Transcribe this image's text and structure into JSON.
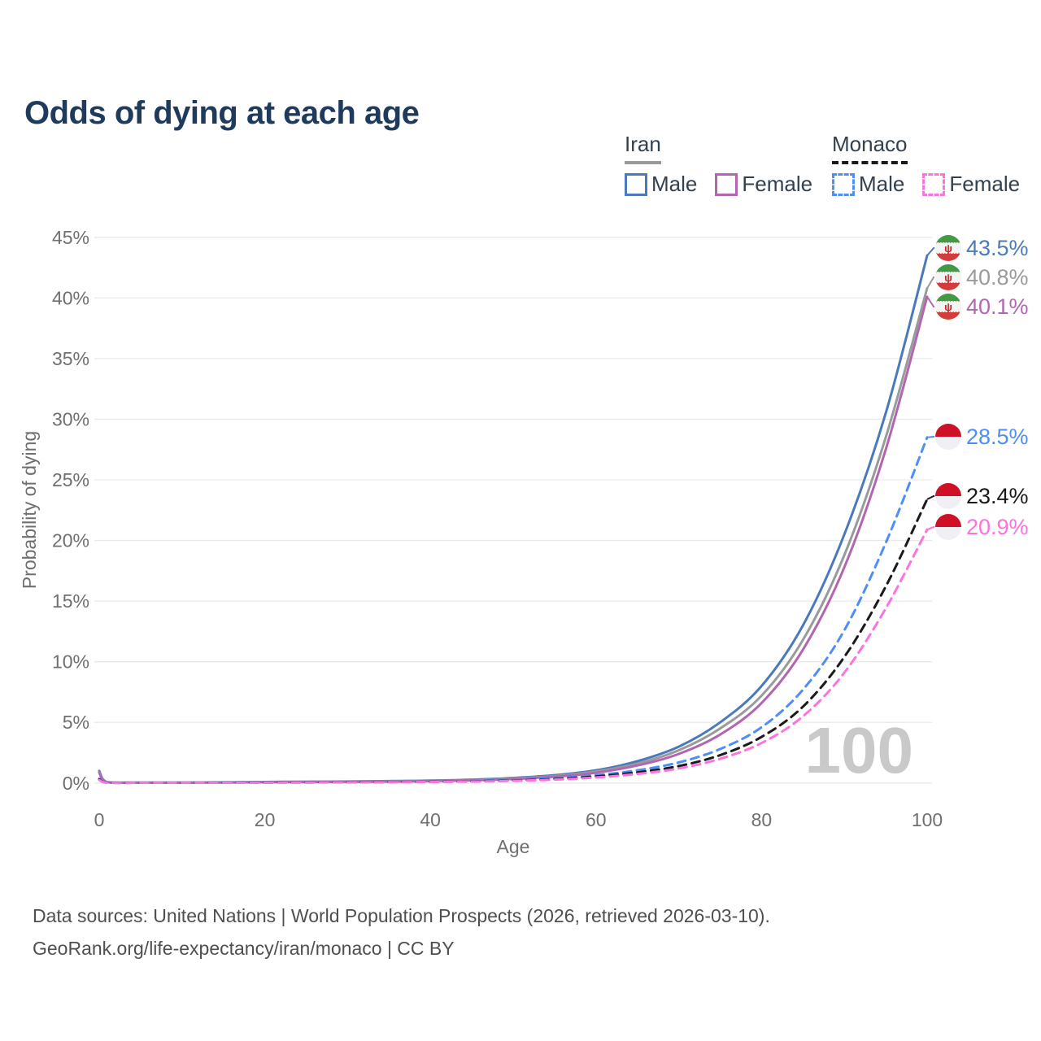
{
  "title": "Odds of dying at each age",
  "legend": {
    "groups": [
      {
        "name": "Iran",
        "line_style": "solid",
        "line_color": "#9a9a9a",
        "items": [
          {
            "label": "Male",
            "color": "#4a7abc"
          },
          {
            "label": "Female",
            "color": "#b266b2"
          }
        ]
      },
      {
        "name": "Monaco",
        "line_style": "dashed",
        "line_color": "#1a1a1a",
        "items": [
          {
            "label": "Male",
            "color": "#4e8ef5"
          },
          {
            "label": "Female",
            "color": "#fb73de"
          }
        ]
      }
    ]
  },
  "chart_data": {
    "type": "line",
    "title": "Odds of dying at each age",
    "xlabel": "Age",
    "ylabel": "Probability of dying",
    "xlim": [
      0,
      100
    ],
    "ylim": [
      0,
      45
    ],
    "xticks": [
      0,
      20,
      40,
      60,
      80,
      100
    ],
    "yticks": [
      0,
      5,
      10,
      15,
      20,
      25,
      30,
      35,
      40,
      45
    ],
    "ytick_suffix": "%",
    "grid": "horizontal",
    "watermark": "100",
    "series": [
      {
        "name": "Iran Male",
        "country": "Iran",
        "sex": "male",
        "color": "#4a7abc",
        "dash": false,
        "flag": "iran",
        "end_label": "43.5%",
        "end_value": 43.5,
        "points": [
          [
            0,
            1.0
          ],
          [
            1,
            0.07
          ],
          [
            5,
            0.04
          ],
          [
            10,
            0.04
          ],
          [
            15,
            0.06
          ],
          [
            20,
            0.09
          ],
          [
            25,
            0.11
          ],
          [
            30,
            0.13
          ],
          [
            35,
            0.16
          ],
          [
            40,
            0.2
          ],
          [
            45,
            0.28
          ],
          [
            50,
            0.42
          ],
          [
            55,
            0.65
          ],
          [
            60,
            1.05
          ],
          [
            65,
            1.8
          ],
          [
            70,
            3.0
          ],
          [
            75,
            5.0
          ],
          [
            80,
            8.0
          ],
          [
            85,
            13.0
          ],
          [
            90,
            20.5
          ],
          [
            95,
            30.5
          ],
          [
            100,
            43.5
          ]
        ]
      },
      {
        "name": "Iran",
        "country": "Iran",
        "sex": "both",
        "color": "#9a9a9a",
        "dash": false,
        "flag": "iran",
        "end_label": "40.8%",
        "end_value": 40.8,
        "points": [
          [
            0,
            0.9
          ],
          [
            1,
            0.06
          ],
          [
            5,
            0.04
          ],
          [
            10,
            0.04
          ],
          [
            15,
            0.05
          ],
          [
            20,
            0.08
          ],
          [
            25,
            0.1
          ],
          [
            30,
            0.12
          ],
          [
            35,
            0.14
          ],
          [
            40,
            0.18
          ],
          [
            45,
            0.25
          ],
          [
            50,
            0.38
          ],
          [
            55,
            0.58
          ],
          [
            60,
            0.95
          ],
          [
            65,
            1.6
          ],
          [
            70,
            2.7
          ],
          [
            75,
            4.5
          ],
          [
            80,
            7.2
          ],
          [
            85,
            11.8
          ],
          [
            90,
            18.8
          ],
          [
            95,
            28.5
          ],
          [
            100,
            40.8
          ]
        ]
      },
      {
        "name": "Iran Female",
        "country": "Iran",
        "sex": "female",
        "color": "#b266b2",
        "dash": false,
        "flag": "iran",
        "end_label": "40.1%",
        "end_value": 40.1,
        "points": [
          [
            0,
            0.85
          ],
          [
            1,
            0.06
          ],
          [
            5,
            0.03
          ],
          [
            10,
            0.03
          ],
          [
            15,
            0.04
          ],
          [
            20,
            0.06
          ],
          [
            25,
            0.08
          ],
          [
            30,
            0.1
          ],
          [
            35,
            0.12
          ],
          [
            40,
            0.16
          ],
          [
            45,
            0.22
          ],
          [
            50,
            0.33
          ],
          [
            55,
            0.52
          ],
          [
            60,
            0.85
          ],
          [
            65,
            1.45
          ],
          [
            70,
            2.4
          ],
          [
            75,
            4.0
          ],
          [
            80,
            6.6
          ],
          [
            85,
            11.0
          ],
          [
            90,
            17.8
          ],
          [
            95,
            27.5
          ],
          [
            100,
            40.1
          ]
        ]
      },
      {
        "name": "Monaco Male",
        "country": "Monaco",
        "sex": "male",
        "color": "#4e8ef5",
        "dash": true,
        "flag": "monaco",
        "end_label": "28.5%",
        "end_value": 28.5,
        "points": [
          [
            0,
            0.35
          ],
          [
            1,
            0.03
          ],
          [
            5,
            0.02
          ],
          [
            10,
            0.02
          ],
          [
            15,
            0.03
          ],
          [
            20,
            0.05
          ],
          [
            25,
            0.06
          ],
          [
            30,
            0.07
          ],
          [
            35,
            0.09
          ],
          [
            40,
            0.12
          ],
          [
            45,
            0.17
          ],
          [
            50,
            0.25
          ],
          [
            55,
            0.4
          ],
          [
            60,
            0.65
          ],
          [
            65,
            1.05
          ],
          [
            70,
            1.7
          ],
          [
            75,
            2.8
          ],
          [
            80,
            4.6
          ],
          [
            85,
            7.7
          ],
          [
            90,
            12.6
          ],
          [
            95,
            19.8
          ],
          [
            100,
            28.5
          ]
        ]
      },
      {
        "name": "Monaco",
        "country": "Monaco",
        "sex": "both",
        "color": "#1a1a1a",
        "dash": true,
        "flag": "monaco",
        "end_label": "23.4%",
        "end_value": 23.4,
        "points": [
          [
            0,
            0.3
          ],
          [
            1,
            0.03
          ],
          [
            5,
            0.02
          ],
          [
            10,
            0.02
          ],
          [
            15,
            0.03
          ],
          [
            20,
            0.04
          ],
          [
            25,
            0.05
          ],
          [
            30,
            0.06
          ],
          [
            35,
            0.08
          ],
          [
            40,
            0.1
          ],
          [
            45,
            0.14
          ],
          [
            50,
            0.21
          ],
          [
            55,
            0.33
          ],
          [
            60,
            0.54
          ],
          [
            65,
            0.88
          ],
          [
            70,
            1.4
          ],
          [
            75,
            2.3
          ],
          [
            80,
            3.8
          ],
          [
            85,
            6.3
          ],
          [
            90,
            10.4
          ],
          [
            95,
            16.2
          ],
          [
            100,
            23.4
          ]
        ]
      },
      {
        "name": "Monaco Female",
        "country": "Monaco",
        "sex": "female",
        "color": "#fb73de",
        "dash": true,
        "flag": "monaco",
        "end_label": "20.9%",
        "end_value": 20.9,
        "points": [
          [
            0,
            0.25
          ],
          [
            1,
            0.02
          ],
          [
            5,
            0.02
          ],
          [
            10,
            0.02
          ],
          [
            15,
            0.02
          ],
          [
            20,
            0.03
          ],
          [
            25,
            0.04
          ],
          [
            30,
            0.05
          ],
          [
            35,
            0.07
          ],
          [
            40,
            0.09
          ],
          [
            45,
            0.12
          ],
          [
            50,
            0.18
          ],
          [
            55,
            0.28
          ],
          [
            60,
            0.46
          ],
          [
            65,
            0.75
          ],
          [
            70,
            1.2
          ],
          [
            75,
            2.0
          ],
          [
            80,
            3.3
          ],
          [
            85,
            5.5
          ],
          [
            90,
            9.1
          ],
          [
            95,
            14.4
          ],
          [
            100,
            20.9
          ]
        ]
      }
    ],
    "flags": {
      "iran": {
        "green": "#449944",
        "white": "#f4f4f4",
        "red": "#d43c3c",
        "emblem": "#cc2222"
      },
      "monaco": {
        "red": "#ce1126",
        "white": "#eef0f3"
      }
    }
  },
  "colors": {
    "title": "#1e3a5c",
    "axis_text": "#6f6f6f",
    "gridline": "#e9e9e9",
    "watermark": "#c9c9c9",
    "footer_text": "#4f4f4f"
  },
  "footer": {
    "line1": "Data sources: United Nations | World Population Prospects (2026, retrieved 2026-03-10).",
    "line2": "GeoRank.org/life-expectancy/iran/monaco | CC BY"
  }
}
